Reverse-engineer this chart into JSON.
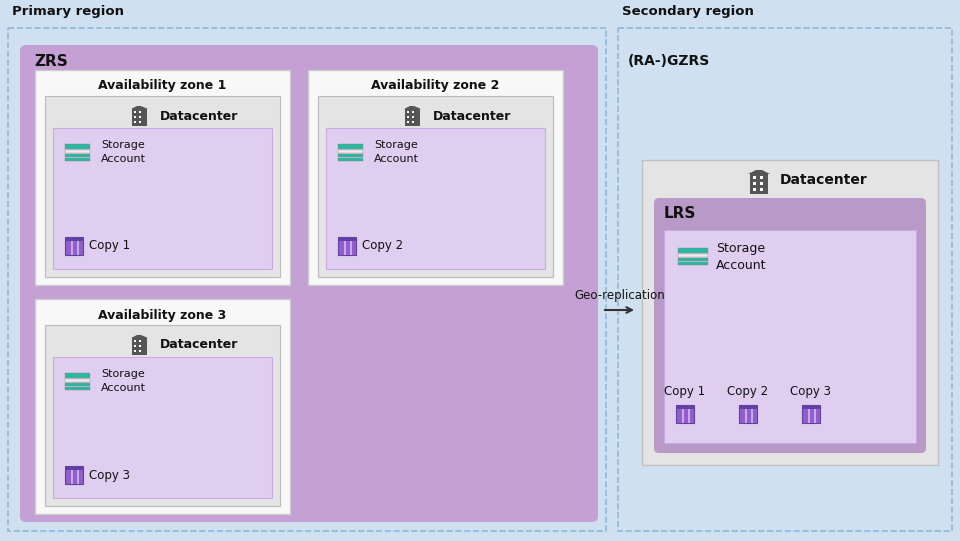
{
  "bg_color": "#cfe0f0",
  "primary_label": "Primary region",
  "secondary_label": "Secondary region",
  "zrs_label": "ZRS",
  "gzrs_label": "(RA-)GZRS",
  "lrs_label": "LRS",
  "az1_label": "Availability zone 1",
  "az2_label": "Availability zone 2",
  "az3_label": "Availability zone 3",
  "datacenter_label": "Datacenter",
  "storage_label": "Storage\nAccount",
  "geo_replication_label": "Geo-replication",
  "copy1_label": "Copy 1",
  "copy2_label": "Copy 2",
  "copy3_label": "Copy 3",
  "color_zrs": "#c4a0d4",
  "color_avzone_bg": "#ffffff",
  "color_dc_bg": "#e2e2e2",
  "color_storage_inner": "#e4d0f0",
  "color_lrs": "#b899c8",
  "color_lrs_inner": "#e4d0f0",
  "color_teal_dark": "#2ab8a0",
  "color_teal_light": "#80ccc0",
  "color_copy_purple": "#8060c0",
  "color_copy_light": "#c0a8e8",
  "color_region_border": "#90b8d8",
  "arrow_color": "#333333"
}
